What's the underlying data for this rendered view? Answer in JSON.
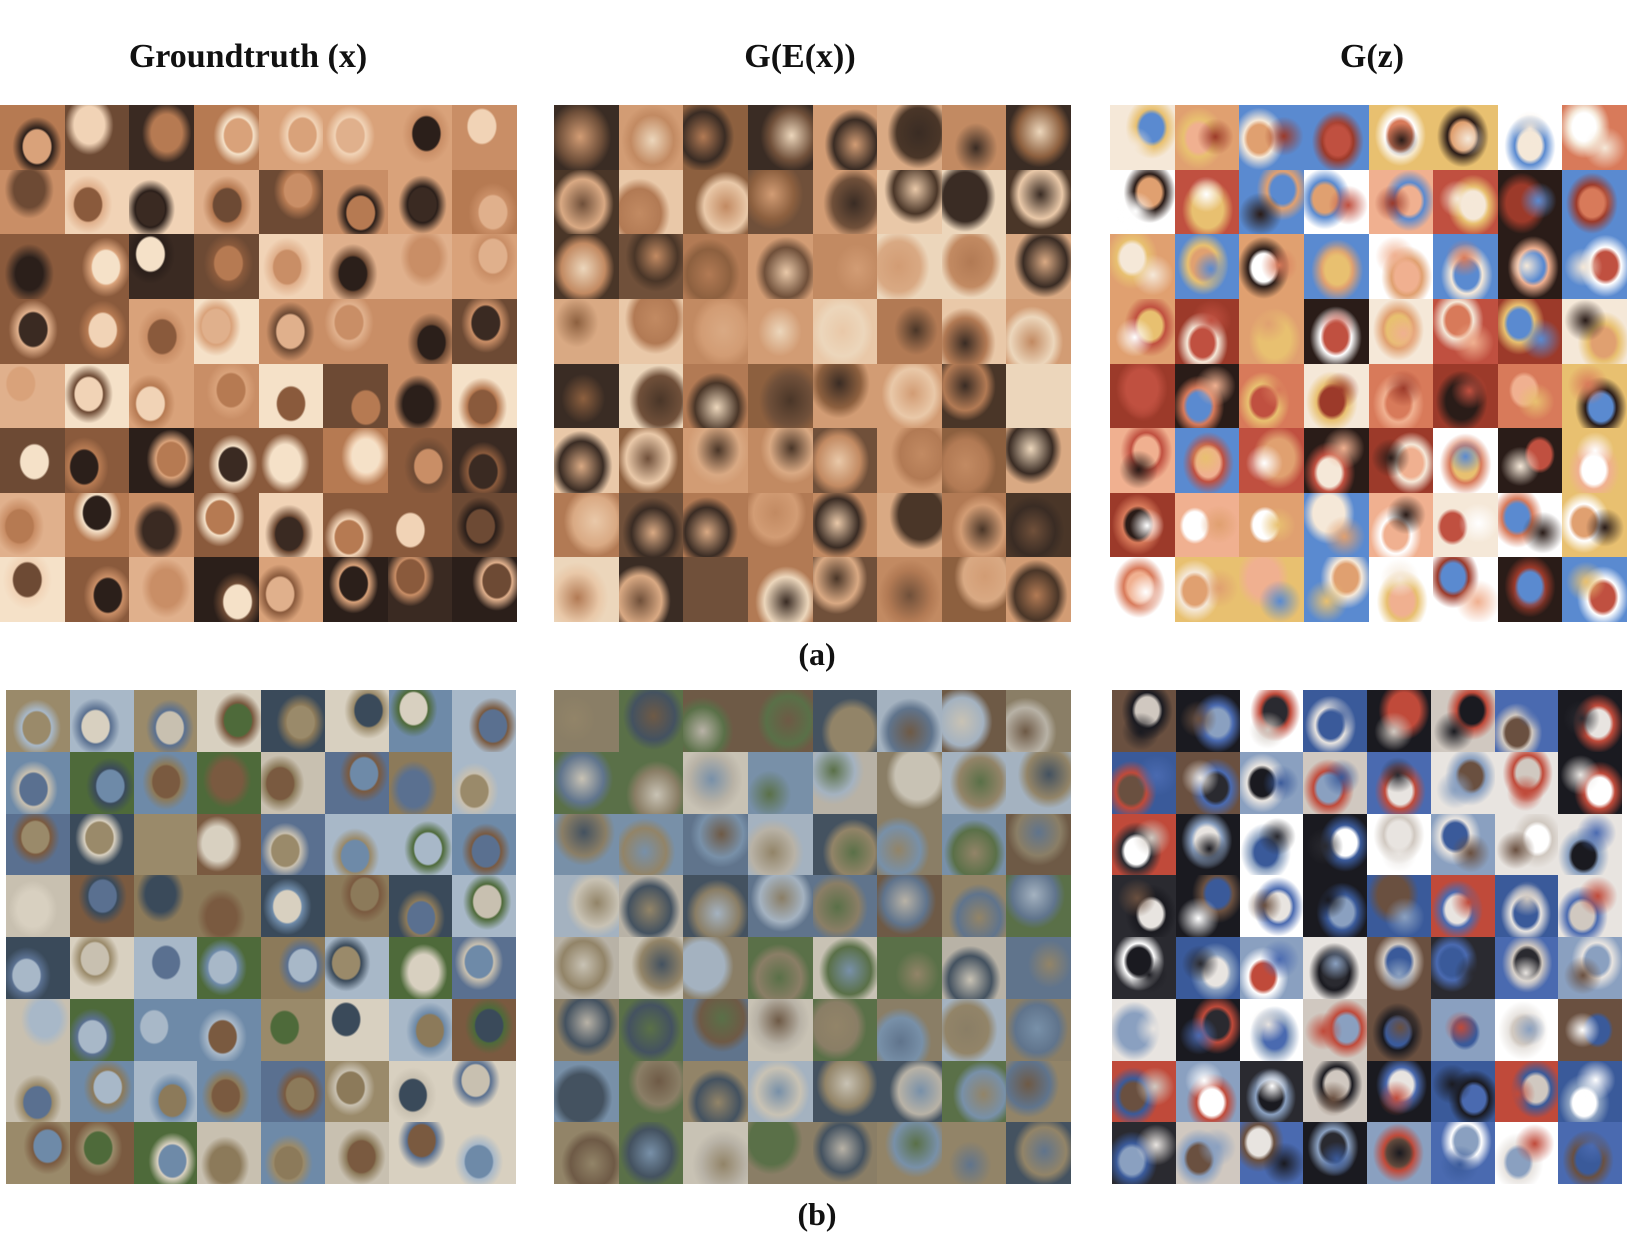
{
  "figure": {
    "column_titles": [
      "Groundtruth (x)",
      "G(E(x))",
      "G(z)"
    ],
    "subfigure_labels": [
      "(a)",
      "(b)"
    ]
  },
  "panels": [
    {
      "id": "faces-groundtruth",
      "row": "a",
      "column": 0,
      "style": "sharp",
      "palette": [
        "#e0b08c",
        "#c98e66",
        "#8a5a3c",
        "#f1d3b6",
        "#3a2a22",
        "#b67a52",
        "#d9a27a",
        "#6d4a34",
        "#f5e1c8",
        "#2b1f1a"
      ]
    },
    {
      "id": "faces-reconstruction",
      "row": "a",
      "column": 1,
      "style": "blur",
      "palette": [
        "#d9a983",
        "#c28a62",
        "#8d603f",
        "#e9c8a8",
        "#4a3628",
        "#b27a54",
        "#d29c74",
        "#70503a",
        "#ecd6bb",
        "#3a2c24"
      ]
    },
    {
      "id": "faces-generated",
      "row": "a",
      "column": 2,
      "style": "noisy",
      "palette": [
        "#f0b090",
        "#d87a5a",
        "#2a1c18",
        "#f5e8d8",
        "#9c3a2a",
        "#e8c070",
        "#5a8ad0",
        "#ffffff",
        "#c05040",
        "#e0a070"
      ]
    },
    {
      "id": "cifar-groundtruth",
      "row": "b",
      "column": 0,
      "style": "sharp",
      "palette": [
        "#6e8aa8",
        "#8c7a5a",
        "#4e6a3a",
        "#a8b8c8",
        "#7a5a40",
        "#c8c0b0",
        "#3a4a5a",
        "#9a8a6a",
        "#5a7090",
        "#d8d0c0"
      ]
    },
    {
      "id": "cifar-reconstruction",
      "row": "b",
      "column": 1,
      "style": "blur",
      "palette": [
        "#7890a8",
        "#8a7e66",
        "#5a7048",
        "#a4b2c0",
        "#6e5a46",
        "#b8b2a6",
        "#445260",
        "#928468",
        "#60748c",
        "#c8c2b4"
      ]
    },
    {
      "id": "cifar-generated",
      "row": "b",
      "column": 2,
      "style": "noisy",
      "palette": [
        "#ffffff",
        "#4a6ab0",
        "#2a2a30",
        "#c04a3a",
        "#8aa0c0",
        "#e8e4e0",
        "#6a5040",
        "#3a5a9a",
        "#d0c8c0",
        "#1a1a20"
      ]
    }
  ]
}
